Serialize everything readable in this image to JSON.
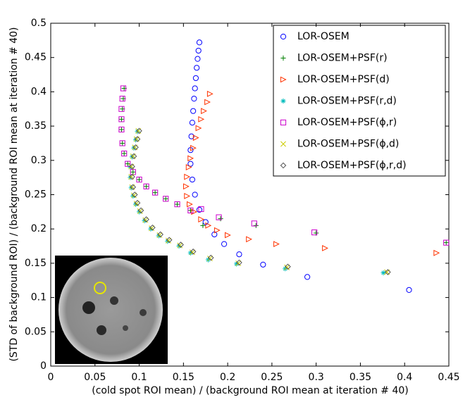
{
  "chart_data": {
    "type": "scatter",
    "xlabel": "(cold spot ROI mean) / (background ROI mean at iteration # 40)",
    "ylabel": "(STD of background ROI) / (background ROI mean at iteration # 40)",
    "xlim": [
      0,
      0.45
    ],
    "ylim": [
      0,
      0.5
    ],
    "xticks": [
      0,
      0.05,
      0.1,
      0.15,
      0.2,
      0.25,
      0.3,
      0.35,
      0.4,
      0.45
    ],
    "yticks": [
      0,
      0.05,
      0.1,
      0.15,
      0.2,
      0.25,
      0.3,
      0.35,
      0.4,
      0.45,
      0.5
    ],
    "grid": false,
    "legend": "upper right",
    "series": [
      {
        "name": "LOR-OSEM",
        "color": "#0000ff",
        "marker": "o",
        "x": [
          0.168,
          0.167,
          0.166,
          0.165,
          0.164,
          0.163,
          0.162,
          0.161,
          0.16,
          0.159,
          0.158,
          0.158,
          0.16,
          0.163,
          0.168,
          0.175,
          0.185,
          0.196,
          0.213,
          0.24,
          0.29,
          0.405
        ],
        "y": [
          0.472,
          0.46,
          0.448,
          0.435,
          0.42,
          0.405,
          0.39,
          0.372,
          0.355,
          0.335,
          0.315,
          0.295,
          0.272,
          0.25,
          0.228,
          0.21,
          0.192,
          0.178,
          0.163,
          0.148,
          0.13,
          0.111
        ]
      },
      {
        "name": "LOR-OSEM+PSF(r)",
        "color": "#007f00",
        "marker": "+",
        "x": [
          0.083,
          0.082,
          0.081,
          0.08,
          0.08,
          0.081,
          0.083,
          0.087,
          0.093,
          0.1,
          0.108,
          0.118,
          0.13,
          0.143,
          0.158,
          0.172,
          0.192,
          0.232,
          0.3,
          0.447
        ],
        "y": [
          0.405,
          0.39,
          0.375,
          0.36,
          0.345,
          0.325,
          0.31,
          0.295,
          0.283,
          0.272,
          0.262,
          0.253,
          0.244,
          0.236,
          0.227,
          0.205,
          0.215,
          0.205,
          0.194,
          0.18
        ]
      },
      {
        "name": "LOR-OSEM+PSF(d)",
        "color": "#ff3300",
        "marker": ">",
        "x": [
          0.18,
          0.177,
          0.173,
          0.17,
          0.167,
          0.164,
          0.161,
          0.158,
          0.156,
          0.154,
          0.153,
          0.154,
          0.157,
          0.162,
          0.17,
          0.178,
          0.188,
          0.2,
          0.224,
          0.255,
          0.31,
          0.436
        ],
        "y": [
          0.397,
          0.385,
          0.372,
          0.36,
          0.347,
          0.333,
          0.318,
          0.303,
          0.29,
          0.276,
          0.262,
          0.248,
          0.236,
          0.225,
          0.214,
          0.205,
          0.198,
          0.191,
          0.185,
          0.178,
          0.172,
          0.165
        ]
      },
      {
        "name": "LOR-OSEM+PSF(r,d)",
        "color": "#00bbbb",
        "marker": "*",
        "x": [
          0.098,
          0.096,
          0.094,
          0.092,
          0.09,
          0.09,
          0.091,
          0.093,
          0.096,
          0.1,
          0.106,
          0.113,
          0.122,
          0.132,
          0.145,
          0.158,
          0.178,
          0.21,
          0.265,
          0.376
        ],
        "y": [
          0.342,
          0.33,
          0.318,
          0.305,
          0.29,
          0.275,
          0.26,
          0.248,
          0.236,
          0.225,
          0.212,
          0.2,
          0.19,
          0.182,
          0.175,
          0.165,
          0.155,
          0.149,
          0.142,
          0.136
        ]
      },
      {
        "name": "LOR-OSEM+PSF(ϕ,r)",
        "color": "#cc00cc",
        "marker": "s",
        "x": [
          0.082,
          0.081,
          0.08,
          0.08,
          0.08,
          0.081,
          0.083,
          0.087,
          0.093,
          0.1,
          0.108,
          0.118,
          0.13,
          0.143,
          0.158,
          0.17,
          0.19,
          0.23,
          0.298,
          0.447
        ],
        "y": [
          0.405,
          0.39,
          0.375,
          0.36,
          0.345,
          0.325,
          0.31,
          0.295,
          0.283,
          0.272,
          0.262,
          0.253,
          0.244,
          0.236,
          0.227,
          0.229,
          0.217,
          0.208,
          0.195,
          0.18
        ]
      },
      {
        "name": "LOR-OSEM+PSF(ϕ,d)",
        "color": "#cccc00",
        "marker": "x",
        "x": [
          0.099,
          0.097,
          0.095,
          0.093,
          0.091,
          0.091,
          0.092,
          0.094,
          0.097,
          0.101,
          0.107,
          0.114,
          0.123,
          0.133,
          0.146,
          0.16,
          0.18,
          0.212,
          0.267,
          0.38
        ],
        "y": [
          0.343,
          0.331,
          0.319,
          0.306,
          0.291,
          0.276,
          0.261,
          0.249,
          0.237,
          0.226,
          0.213,
          0.201,
          0.191,
          0.183,
          0.176,
          0.166,
          0.157,
          0.15,
          0.144,
          0.137
        ]
      },
      {
        "name": "LOR-OSEM+PSF(ϕ,r,d)",
        "color": "#555555",
        "marker": "d",
        "x": [
          0.1,
          0.098,
          0.096,
          0.094,
          0.092,
          0.092,
          0.093,
          0.095,
          0.098,
          0.102,
          0.108,
          0.115,
          0.124,
          0.134,
          0.147,
          0.161,
          0.181,
          0.213,
          0.268,
          0.381
        ],
        "y": [
          0.343,
          0.331,
          0.319,
          0.306,
          0.291,
          0.276,
          0.261,
          0.25,
          0.238,
          0.227,
          0.214,
          0.202,
          0.192,
          0.184,
          0.177,
          0.167,
          0.158,
          0.151,
          0.145,
          0.137
        ]
      }
    ]
  }
}
